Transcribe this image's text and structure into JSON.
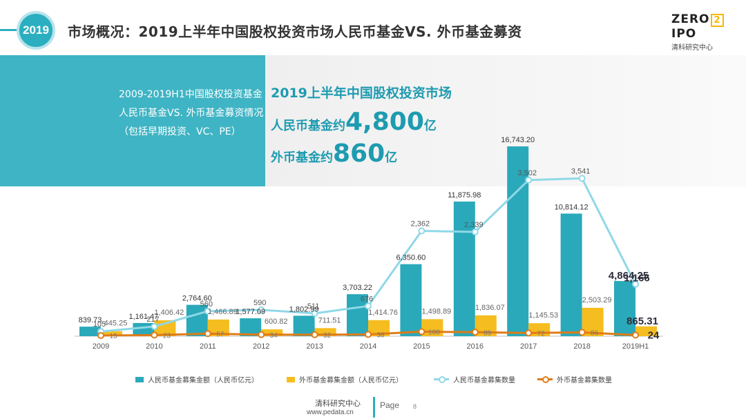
{
  "header": {
    "year_badge": "2019",
    "title": "市场概况：2019上半年中国股权投资市场人民币基金VS. 外币基金募资"
  },
  "logo": {
    "left": "ZERO",
    "box": "2",
    "right": "IPO",
    "cn": "清科研究中心"
  },
  "banner": {
    "description": "2009-2019H1中国股权投资基金人民币基金VS. 外币基金募资情况（包括早期投资、VC、PE）",
    "highlight_title": "2019上半年中国股权投资市场",
    "rmb_prefix": "人民币基金约",
    "rmb_value": "4,800",
    "rmb_unit": "亿",
    "usd_prefix": "外币基金约",
    "usd_value": "860",
    "usd_unit": "亿"
  },
  "chart_data": {
    "type": "bar+line",
    "categories": [
      "2009",
      "2010",
      "2011",
      "2012",
      "2013",
      "2014",
      "2015",
      "2016",
      "2017",
      "2018",
      "2019H1"
    ],
    "series": [
      {
        "name": "人民币基金募集金额（人民币亿元）",
        "type": "bar",
        "color": "#2aa9ba",
        "values": [
          839.73,
          1161.47,
          2764.6,
          1577.09,
          1802.99,
          3703.22,
          6350.6,
          11875.98,
          16743.2,
          10814.12,
          4864.25
        ],
        "labels": [
          "839.73",
          "1,161.47",
          "2,764.60",
          "1,577.09",
          "1,802.99",
          "3,703.22",
          "6,350.60",
          "11,875.98",
          "16,743.20",
          "10,814.12",
          "4,864.25"
        ]
      },
      {
        "name": "外币基金募集金额（人民币亿元）",
        "type": "bar",
        "color": "#f5bd1f",
        "values": [
          445.25,
          1406.42,
          1466.89,
          600.82,
          711.51,
          1414.76,
          1498.89,
          1836.07,
          1145.53,
          2503.29,
          865.31
        ],
        "labels": [
          "445.25",
          "1,406.42",
          "1,466.89",
          "600.82",
          "711.51",
          "1,414.76",
          "1,498.89",
          "1,836.07",
          "1,145.53",
          "2,503.29",
          "865.31"
        ]
      },
      {
        "name": "人民币基金募集数量",
        "type": "line",
        "color": "#8fd8e8",
        "values": [
          105,
          217,
          560,
          590,
          511,
          676,
          2362,
          2339,
          3502,
          3541,
          1166
        ],
        "labels": [
          "105",
          "217",
          "560",
          "590",
          "511",
          "676",
          "2,362",
          "2,339",
          "3,502",
          "3,541",
          "1,166"
        ]
      },
      {
        "name": "外币基金募集数量",
        "type": "line",
        "color": "#e07b17",
        "values": [
          15,
          23,
          57,
          34,
          32,
          38,
          100,
          89,
          72,
          86,
          24
        ],
        "labels": [
          "15",
          "23",
          "57",
          "34",
          "32",
          "38",
          "100",
          "89",
          "72",
          "86",
          "24"
        ]
      }
    ],
    "ylim_amount": [
      0,
      19000
    ],
    "ylim_count": [
      0,
      4600
    ],
    "legend_position": "bottom",
    "grid": false
  },
  "footer": {
    "org": "清科研究中心",
    "url": "www.pedata.cn",
    "page_label": "Page",
    "page_number": "8"
  }
}
